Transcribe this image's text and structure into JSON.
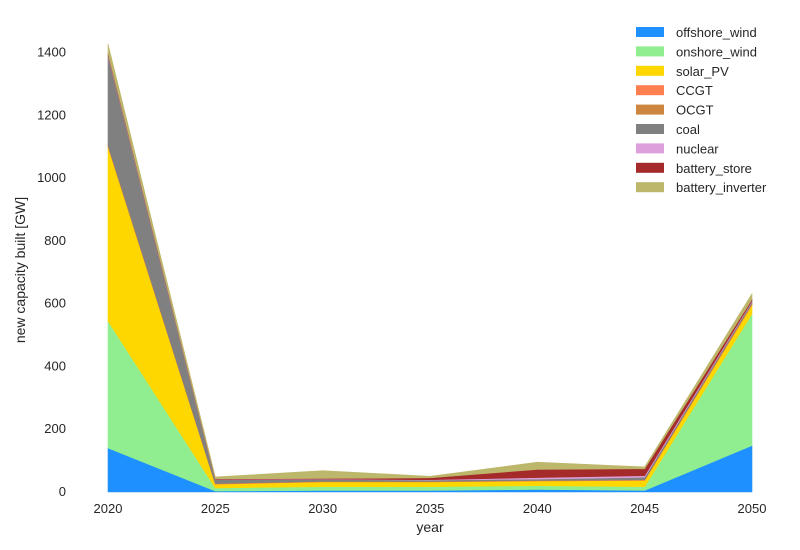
{
  "chart_data": {
    "type": "area",
    "stacked": true,
    "title": "",
    "xlabel": "year",
    "ylabel": "new capacity built [GW]",
    "x": [
      2020,
      2025,
      2030,
      2035,
      2040,
      2045,
      2050
    ],
    "x_ticks": [
      "2020",
      "2025",
      "2030",
      "2035",
      "2040",
      "2045",
      "2050"
    ],
    "xlim": [
      2020,
      2050
    ],
    "ylim": [
      0,
      1450
    ],
    "y_ticks": [
      "0",
      "200",
      "400",
      "600",
      "800",
      "1000",
      "1200",
      "1400"
    ],
    "y_tick_values": [
      0,
      200,
      400,
      600,
      800,
      1000,
      1200,
      1400
    ],
    "grid": false,
    "legend_position": "top-right",
    "series": [
      {
        "name": "offshore_wind",
        "color": "#1E90FF",
        "values": [
          140,
          3,
          5,
          5,
          8,
          5,
          148
        ]
      },
      {
        "name": "onshore_wind",
        "color": "#90EE90",
        "values": [
          405,
          10,
          12,
          12,
          12,
          12,
          420
        ]
      },
      {
        "name": "solar_PV",
        "color": "#FFD700",
        "values": [
          555,
          12,
          15,
          15,
          15,
          20,
          28
        ]
      },
      {
        "name": "CCGT",
        "color": "#FF7F50",
        "values": [
          2,
          1,
          1,
          1,
          1,
          1,
          2
        ]
      },
      {
        "name": "OCGT",
        "color": "#CD853F",
        "values": [
          3,
          1,
          1,
          1,
          1,
          1,
          3
        ]
      },
      {
        "name": "coal",
        "color": "#808080",
        "values": [
          285,
          12,
          6,
          4,
          4,
          8,
          5
        ]
      },
      {
        "name": "nuclear",
        "color": "#DDA0DD",
        "values": [
          3,
          1,
          1,
          1,
          5,
          5,
          3
        ]
      },
      {
        "name": "battery_store",
        "color": "#A52A2A",
        "values": [
          5,
          2,
          2,
          6,
          26,
          22,
          5
        ]
      },
      {
        "name": "battery_inverter",
        "color": "#BDB76B",
        "values": [
          30,
          6,
          25,
          5,
          23,
          6,
          18
        ]
      }
    ]
  }
}
